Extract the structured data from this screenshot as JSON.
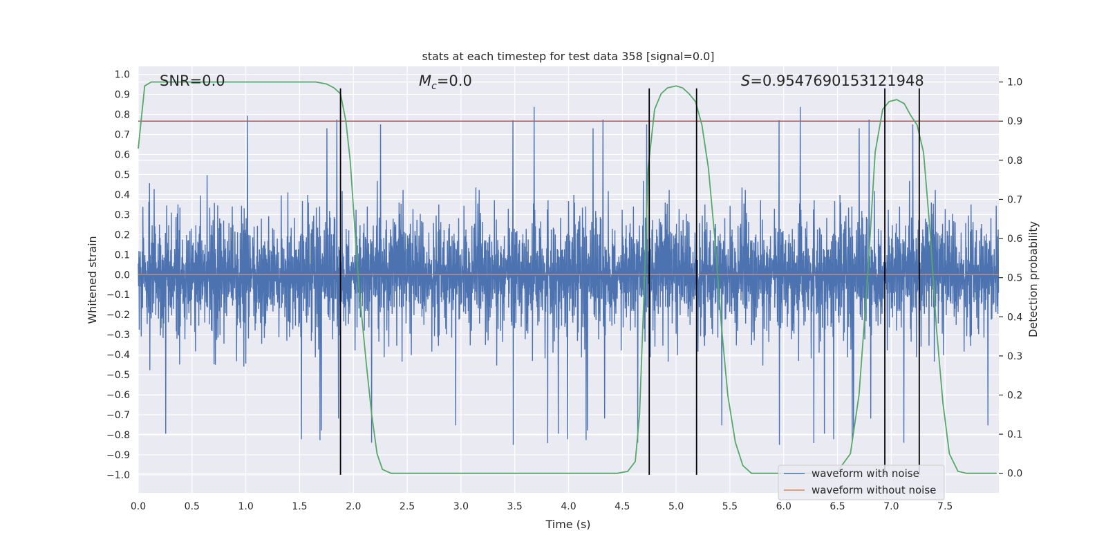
{
  "chart_data": {
    "type": "line",
    "title": "stats at each timestep for test data 358 [signal=0.0]",
    "xlabel": "Time (s)",
    "ylabel": "Whitened strain",
    "y2label": "Detection probability",
    "xlim": [
      0.0,
      8.0
    ],
    "ylim": [
      -1.09,
      1.04
    ],
    "y2lim": [
      -0.05,
      1.04
    ],
    "xticks": [
      0.0,
      0.5,
      1.0,
      1.5,
      2.0,
      2.5,
      3.0,
      3.5,
      4.0,
      4.5,
      5.0,
      5.5,
      6.0,
      6.5,
      7.0,
      7.5
    ],
    "xtick_labels": [
      "0.0",
      "0.5",
      "1.0",
      "1.5",
      "2.0",
      "2.5",
      "3.0",
      "3.5",
      "4.0",
      "4.5",
      "5.0",
      "5.5",
      "6.0",
      "6.5",
      "7.0",
      "7.5"
    ],
    "yticks": [
      -1.0,
      -0.9,
      -0.8,
      -0.7,
      -0.6,
      -0.5,
      -0.4,
      -0.3,
      -0.2,
      -0.1,
      0.0,
      0.1,
      0.2,
      0.3,
      0.4,
      0.5,
      0.6,
      0.7,
      0.8,
      0.9,
      1.0
    ],
    "ytick_labels": [
      "−1.0",
      "−0.9",
      "−0.8",
      "−0.7",
      "−0.6",
      "−0.5",
      "−0.4",
      "−0.3",
      "−0.2",
      "−0.1",
      "0.0",
      "0.1",
      "0.2",
      "0.3",
      "0.4",
      "0.5",
      "0.6",
      "0.7",
      "0.8",
      "0.9",
      "1.0"
    ],
    "y2ticks": [
      0.0,
      0.1,
      0.2,
      0.3,
      0.4,
      0.5,
      0.6,
      0.7,
      0.8,
      0.9,
      1.0
    ],
    "y2tick_labels": [
      "0.0",
      "0.1",
      "0.2",
      "0.3",
      "0.4",
      "0.5",
      "0.6",
      "0.7",
      "0.8",
      "0.9",
      "1.0"
    ],
    "grid": true,
    "background": "#eaeaf2",
    "legend_position": "lower right",
    "annotations": {
      "snr": "SNR=0.0",
      "mc_symbol": "M",
      "mc_subscript": "c",
      "mc_value": "=0.0",
      "s_symbol": "S",
      "s_value": "=0.9547690153121948"
    },
    "series": [
      {
        "name": "waveform with noise",
        "color": "#4c72b0",
        "style": "dense-noise",
        "amplitude_rms": 0.25
      },
      {
        "name": "waveform without noise",
        "color": "#dd8452",
        "value": 0.0
      },
      {
        "color": "#c44e52",
        "axis": "right",
        "value": 0.9
      },
      {
        "color": "#55a868",
        "axis": "right",
        "x": [
          0.0,
          0.06,
          0.12,
          0.2,
          0.5,
          1.0,
          1.5,
          1.65,
          1.75,
          1.82,
          1.88,
          1.93,
          1.97,
          2.0,
          2.05,
          2.12,
          2.17,
          2.22,
          2.27,
          2.35,
          2.5,
          3.0,
          3.5,
          4.0,
          4.3,
          4.45,
          4.55,
          4.62,
          4.66,
          4.7,
          4.74,
          4.8,
          4.86,
          4.92,
          5.0,
          5.06,
          5.12,
          5.18,
          5.24,
          5.3,
          5.36,
          5.42,
          5.48,
          5.55,
          5.62,
          5.7,
          5.8,
          6.0,
          6.3,
          6.5,
          6.62,
          6.7,
          6.78,
          6.85,
          6.92,
          6.98,
          7.05,
          7.12,
          7.18,
          7.24,
          7.3,
          7.36,
          7.42,
          7.48,
          7.54,
          7.62,
          7.7,
          7.8,
          7.98
        ],
        "values": [
          0.83,
          0.99,
          1.0,
          1.0,
          1.0,
          1.0,
          1.0,
          1.0,
          0.995,
          0.985,
          0.97,
          0.9,
          0.8,
          0.68,
          0.48,
          0.28,
          0.15,
          0.05,
          0.01,
          0.0,
          0.0,
          0.0,
          0.0,
          0.0,
          0.0,
          0.0,
          0.005,
          0.03,
          0.15,
          0.45,
          0.78,
          0.93,
          0.97,
          0.985,
          0.99,
          0.985,
          0.97,
          0.95,
          0.89,
          0.78,
          0.6,
          0.38,
          0.2,
          0.08,
          0.02,
          0.0,
          0.0,
          0.0,
          0.0,
          0.005,
          0.05,
          0.2,
          0.5,
          0.82,
          0.93,
          0.95,
          0.955,
          0.945,
          0.915,
          0.89,
          0.82,
          0.62,
          0.37,
          0.18,
          0.05,
          0.005,
          0.0,
          0.0,
          0.0
        ]
      }
    ],
    "vertical_lines": [
      1.88,
      4.75,
      5.19,
      6.94,
      7.26
    ],
    "vertical_line_range": [
      -1.0,
      0.93
    ]
  }
}
